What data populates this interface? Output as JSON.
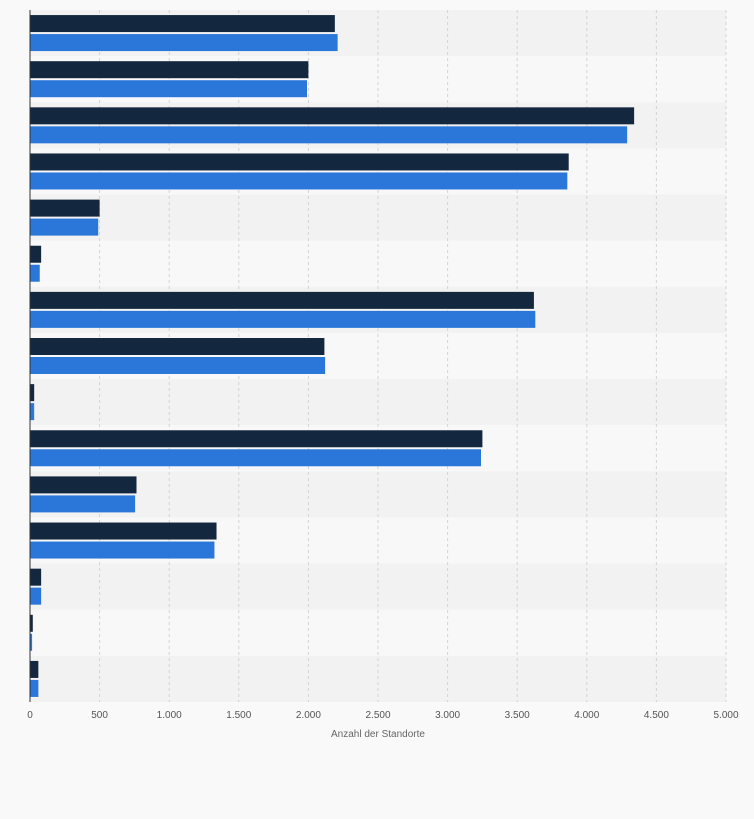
{
  "chart_data": {
    "type": "bar",
    "orientation": "horizontal",
    "xlabel": "Anzahl der Standorte",
    "xlim": [
      0,
      5000
    ],
    "xticks": [
      0,
      500,
      1000,
      1500,
      2000,
      2500,
      3000,
      3500,
      4000,
      4500,
      5000
    ],
    "xtick_labels": [
      "0",
      "500",
      "1.000",
      "1.500",
      "2.000",
      "2.500",
      "3.000",
      "3.500",
      "4.000",
      "4.500",
      "5.000"
    ],
    "grid": "vertical dashed",
    "legend": "none",
    "categories": [
      "",
      "",
      "",
      "",
      "",
      "",
      "",
      "",
      "",
      "",
      "",
      "",
      "",
      "",
      ""
    ],
    "series": [
      {
        "color": "#13273f",
        "values": [
          2190,
          2000,
          4340,
          3870,
          500,
          80,
          3620,
          2115,
          30,
          3250,
          765,
          1340,
          80,
          20,
          60
        ]
      },
      {
        "color": "#2b77d9",
        "values": [
          2210,
          1990,
          4290,
          3860,
          490,
          70,
          3630,
          2120,
          30,
          3240,
          755,
          1325,
          80,
          15,
          60
        ]
      }
    ]
  }
}
